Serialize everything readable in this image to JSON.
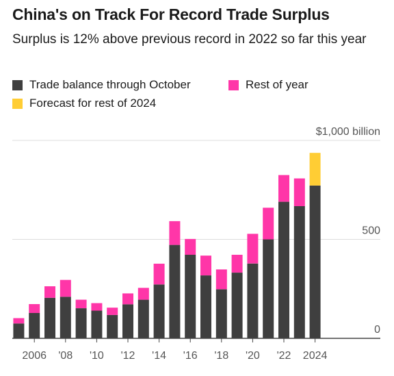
{
  "header": {
    "title": "China's on Track For Record Trade Surplus",
    "subtitle": "Surplus is 12% above previous record in 2022 so far this year"
  },
  "legend": [
    {
      "label": "Trade balance through October",
      "color": "#3f3f3f"
    },
    {
      "label": "Rest of year",
      "color": "#ff36a8"
    },
    {
      "label": "Forecast for rest of 2024",
      "color": "#ffcd34"
    }
  ],
  "chart_data": {
    "type": "bar",
    "stacked": true,
    "categories": [
      "2005",
      "2006",
      "2007",
      "2008",
      "2009",
      "2010",
      "2011",
      "2012",
      "2013",
      "2014",
      "2015",
      "2016",
      "2017",
      "2018",
      "2019",
      "2020",
      "2021",
      "2022",
      "2023",
      "2024"
    ],
    "x_tick_labels": [
      "2006",
      "'08",
      "'10",
      "'12",
      "'14",
      "'16",
      "'18",
      "'20",
      "'22",
      "2024"
    ],
    "series": [
      {
        "name": "Trade balance through October",
        "color": "#3f3f3f",
        "values": [
          75,
          128,
          205,
          210,
          152,
          140,
          118,
          172,
          195,
          272,
          472,
          422,
          318,
          248,
          332,
          378,
          500,
          690,
          668,
          772
        ]
      },
      {
        "name": "Rest of year",
        "color": "#ff36a8",
        "values": [
          27,
          45,
          58,
          85,
          43,
          38,
          37,
          55,
          60,
          105,
          120,
          80,
          100,
          100,
          90,
          150,
          160,
          135,
          140,
          0
        ]
      },
      {
        "name": "Forecast for rest of 2024",
        "color": "#ffcd34",
        "values": [
          0,
          0,
          0,
          0,
          0,
          0,
          0,
          0,
          0,
          0,
          0,
          0,
          0,
          0,
          0,
          0,
          0,
          0,
          0,
          165
        ]
      }
    ],
    "y_ticks": [
      {
        "value": 0,
        "label": "0"
      },
      {
        "value": 500,
        "label": "500"
      },
      {
        "value": 1000,
        "label": "$1,000 billion"
      }
    ],
    "ylim": [
      0,
      1000
    ],
    "grid": true
  }
}
